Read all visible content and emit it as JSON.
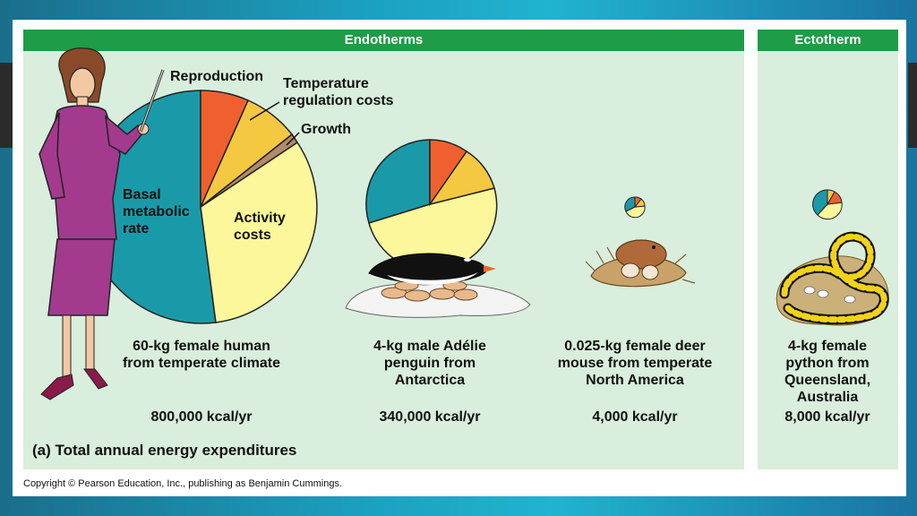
{
  "panels": {
    "endotherms_title": "Endotherms",
    "ectotherm_title": "Ectotherm"
  },
  "pie_labels": {
    "reproduction": "Reproduction",
    "temperature": "Temperature\nregulation costs",
    "growth": "Growth",
    "basal": "Basal\nmetabolic\nrate",
    "activity": "Activity\ncosts"
  },
  "organisms": [
    {
      "label": "60-kg female human\nfrom temperate climate",
      "energy": "800,000 kcal/yr"
    },
    {
      "label": "4-kg male Adélie\npenguin from\nAntarctica",
      "energy": "340,000 kcal/yr"
    },
    {
      "label": "0.025-kg female deer\nmouse from temperate\nNorth America",
      "energy": "4,000 kcal/yr"
    },
    {
      "label": "4-kg female\npython from\nQueensland,\nAustralia",
      "energy": "8,000 kcal/yr"
    }
  ],
  "caption_letter": "(a)",
  "caption": "Total annual energy expenditures",
  "copyright": "Copyright © Pearson Education, Inc., publishing as Benjamin Cummings.",
  "colors": {
    "basal": "#1a9aa8",
    "reproduction": "#f0602f",
    "temperature": "#f5c842",
    "growth": "#b08a6a",
    "activity": "#fbf79a",
    "header": "#1e9c47",
    "panel": "#d9eedc"
  }
}
